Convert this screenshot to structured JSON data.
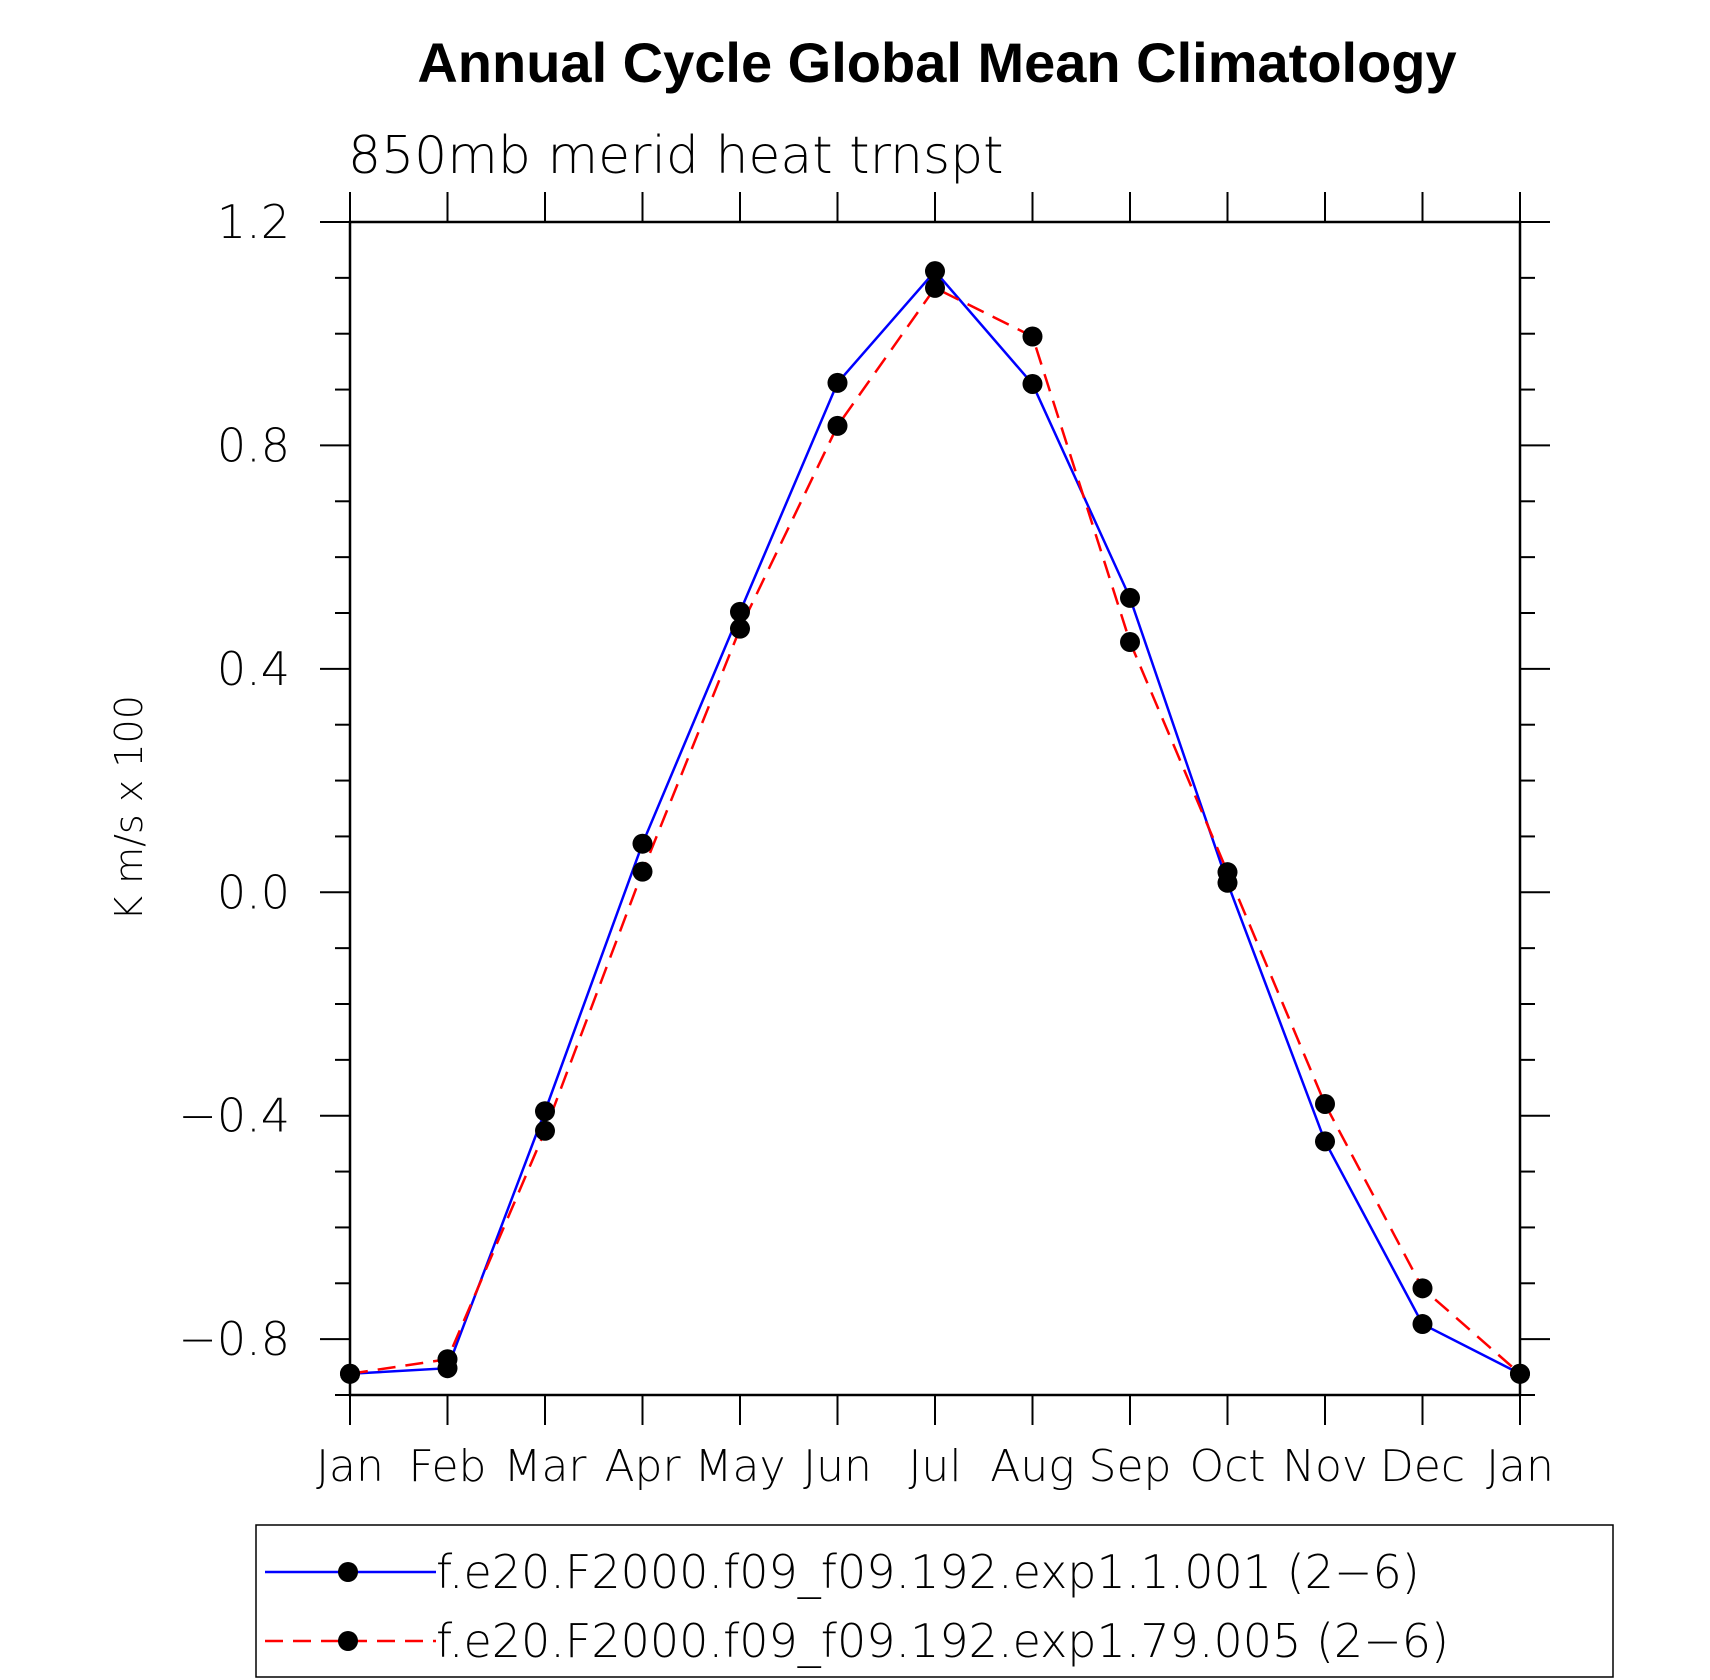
{
  "chart_data": {
    "type": "line",
    "title": "Annual Cycle Global Mean Climatology",
    "subtitle": "850mb merid heat trnspt",
    "xlabel": "",
    "ylabel": "K m/s x 100",
    "categories": [
      "Jan",
      "Feb",
      "Mar",
      "Apr",
      "May",
      "Jun",
      "Jul",
      "Aug",
      "Sep",
      "Oct",
      "Nov",
      "Dec",
      "Jan"
    ],
    "ylim": [
      -0.9,
      1.2
    ],
    "yticks": [
      -0.8,
      -0.4,
      0.0,
      0.4,
      0.8,
      1.2
    ],
    "ytick_labels": [
      "−0.8",
      "−0.4",
      "0.0",
      "0.4",
      "0.8",
      "1.2"
    ],
    "grid": false,
    "legend_position": "bottom",
    "series": [
      {
        "name": "f.e20.F2000.f09_f09.192.exp1.1.001 (2−6)",
        "color": "#0000ff",
        "dash": "solid",
        "values": [
          -0.862,
          -0.852,
          -0.392,
          0.087,
          0.502,
          0.912,
          1.112,
          0.91,
          0.527,
          0.017,
          -0.446,
          -0.773,
          -0.862
        ]
      },
      {
        "name": "f.e20.F2000.f09_f09.192.exp1.79.005 (2−6)",
        "color": "#ff0000",
        "dash": "dashed",
        "values": [
          -0.862,
          -0.836,
          -0.427,
          0.037,
          0.472,
          0.835,
          1.082,
          0.995,
          0.448,
          0.036,
          -0.379,
          -0.709,
          -0.862
        ]
      }
    ]
  }
}
